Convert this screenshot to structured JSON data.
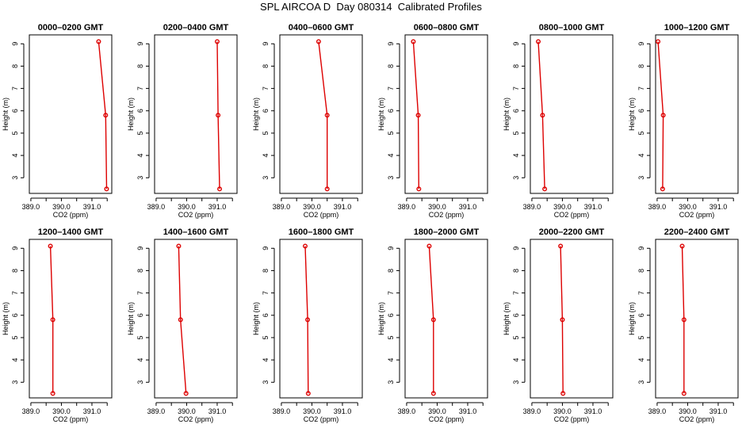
{
  "title": "SPL AIRCOA D  Day 080314  Calibrated Profiles",
  "colors": {
    "profile": "#dd0000",
    "axis": "#000000",
    "frame": "#000000"
  },
  "chart_data": [
    {
      "type": "line",
      "title": "0000–0200 GMT",
      "xlabel": "CO2 (ppm)",
      "ylabel": "Height (m)",
      "xlim": [
        388.95,
        391.65
      ],
      "ylim": [
        2.3,
        9.4
      ],
      "x_ticks": [
        389.0,
        389.5,
        390.0,
        390.5,
        391.0,
        391.5
      ],
      "x_tick_labels": [
        "389.0",
        "",
        "390.0",
        "",
        "391.0",
        ""
      ],
      "y_ticks": [
        3,
        4,
        5,
        6,
        7,
        8,
        9
      ],
      "y_tick_labels": [
        "3",
        "4",
        "5",
        "6",
        "7",
        "8",
        "9"
      ],
      "series": [
        {
          "x": [
            391.22,
            391.45,
            391.48
          ],
          "y": [
            9.1,
            5.8,
            2.5
          ]
        }
      ]
    },
    {
      "type": "line",
      "title": "0200–0400 GMT",
      "xlabel": "CO2 (ppm)",
      "ylabel": "Height (m)",
      "xlim": [
        388.95,
        391.65
      ],
      "ylim": [
        2.3,
        9.4
      ],
      "x_ticks": [
        389.0,
        389.5,
        390.0,
        390.5,
        391.0,
        391.5
      ],
      "x_tick_labels": [
        "389.0",
        "",
        "390.0",
        "",
        "391.0",
        ""
      ],
      "y_ticks": [
        3,
        4,
        5,
        6,
        7,
        8,
        9
      ],
      "y_tick_labels": [
        "3",
        "4",
        "5",
        "6",
        "7",
        "8",
        "9"
      ],
      "series": [
        {
          "x": [
            391.0,
            391.03,
            391.08
          ],
          "y": [
            9.1,
            5.8,
            2.5
          ]
        }
      ]
    },
    {
      "type": "line",
      "title": "0400–0600 GMT",
      "xlabel": "CO2 (ppm)",
      "ylabel": "Height (m)",
      "xlim": [
        388.95,
        391.65
      ],
      "ylim": [
        2.3,
        9.4
      ],
      "x_ticks": [
        389.0,
        389.5,
        390.0,
        390.5,
        391.0,
        391.5
      ],
      "x_tick_labels": [
        "389.0",
        "",
        "390.0",
        "",
        "391.0",
        ""
      ],
      "y_ticks": [
        3,
        4,
        5,
        6,
        7,
        8,
        9
      ],
      "y_tick_labels": [
        "3",
        "4",
        "5",
        "6",
        "7",
        "8",
        "9"
      ],
      "series": [
        {
          "x": [
            390.22,
            390.5,
            390.5
          ],
          "y": [
            9.1,
            5.8,
            2.5
          ]
        }
      ]
    },
    {
      "type": "line",
      "title": "0600–0800 GMT",
      "xlabel": "CO2 (ppm)",
      "ylabel": "Height (m)",
      "xlim": [
        388.95,
        391.65
      ],
      "ylim": [
        2.3,
        9.4
      ],
      "x_ticks": [
        389.0,
        389.5,
        390.0,
        390.5,
        391.0,
        391.5
      ],
      "x_tick_labels": [
        "389.0",
        "",
        "390.0",
        "",
        "391.0",
        ""
      ],
      "y_ticks": [
        3,
        4,
        5,
        6,
        7,
        8,
        9
      ],
      "y_tick_labels": [
        "3",
        "4",
        "5",
        "6",
        "7",
        "8",
        "9"
      ],
      "series": [
        {
          "x": [
            389.22,
            389.38,
            389.4
          ],
          "y": [
            9.1,
            5.8,
            2.5
          ]
        }
      ]
    },
    {
      "type": "line",
      "title": "0800–1000 GMT",
      "xlabel": "CO2 (ppm)",
      "ylabel": "Height (m)",
      "xlim": [
        388.95,
        391.65
      ],
      "ylim": [
        2.3,
        9.4
      ],
      "x_ticks": [
        389.0,
        389.5,
        390.0,
        390.5,
        391.0,
        391.5
      ],
      "x_tick_labels": [
        "389.0",
        "",
        "390.0",
        "",
        "391.0",
        ""
      ],
      "y_ticks": [
        3,
        4,
        5,
        6,
        7,
        8,
        9
      ],
      "y_tick_labels": [
        "3",
        "4",
        "5",
        "6",
        "7",
        "8",
        "9"
      ],
      "series": [
        {
          "x": [
            389.21,
            389.35,
            389.42
          ],
          "y": [
            9.1,
            5.8,
            2.5
          ]
        }
      ]
    },
    {
      "type": "line",
      "title": "1000–1200 GMT",
      "xlabel": "CO2 (ppm)",
      "ylabel": "Height (m)",
      "xlim": [
        388.95,
        391.65
      ],
      "ylim": [
        2.3,
        9.4
      ],
      "x_ticks": [
        389.0,
        389.5,
        390.0,
        390.5,
        391.0,
        391.5
      ],
      "x_tick_labels": [
        "389.0",
        "",
        "390.0",
        "",
        "391.0",
        ""
      ],
      "y_ticks": [
        3,
        4,
        5,
        6,
        7,
        8,
        9
      ],
      "y_tick_labels": [
        "3",
        "4",
        "5",
        "6",
        "7",
        "8",
        "9"
      ],
      "series": [
        {
          "x": [
            389.03,
            389.2,
            389.18
          ],
          "y": [
            9.1,
            5.8,
            2.5
          ]
        }
      ]
    },
    {
      "type": "line",
      "title": "1200–1400 GMT",
      "xlabel": "CO2 (ppm)",
      "ylabel": "Height (m)",
      "xlim": [
        388.95,
        391.65
      ],
      "ylim": [
        2.3,
        9.4
      ],
      "x_ticks": [
        389.0,
        389.5,
        390.0,
        390.5,
        391.0,
        391.5
      ],
      "x_tick_labels": [
        "389.0",
        "",
        "390.0",
        "",
        "391.0",
        ""
      ],
      "y_ticks": [
        3,
        4,
        5,
        6,
        7,
        8,
        9
      ],
      "y_tick_labels": [
        "3",
        "4",
        "5",
        "6",
        "7",
        "8",
        "9"
      ],
      "series": [
        {
          "x": [
            389.64,
            389.72,
            389.72
          ],
          "y": [
            9.1,
            5.8,
            2.5
          ]
        }
      ]
    },
    {
      "type": "line",
      "title": "1400–1600 GMT",
      "xlabel": "CO2 (ppm)",
      "ylabel": "Height (m)",
      "xlim": [
        388.95,
        391.65
      ],
      "ylim": [
        2.3,
        9.4
      ],
      "x_ticks": [
        389.0,
        389.5,
        390.0,
        390.5,
        391.0,
        391.5
      ],
      "x_tick_labels": [
        "389.0",
        "",
        "390.0",
        "",
        "391.0",
        ""
      ],
      "y_ticks": [
        3,
        4,
        5,
        6,
        7,
        8,
        9
      ],
      "y_tick_labels": [
        "3",
        "4",
        "5",
        "6",
        "7",
        "8",
        "9"
      ],
      "series": [
        {
          "x": [
            389.74,
            389.8,
            389.98
          ],
          "y": [
            9.1,
            5.8,
            2.5
          ]
        }
      ]
    },
    {
      "type": "line",
      "title": "1600–1800 GMT",
      "xlabel": "CO2 (ppm)",
      "ylabel": "Height (m)",
      "xlim": [
        388.95,
        391.65
      ],
      "ylim": [
        2.3,
        9.4
      ],
      "x_ticks": [
        389.0,
        389.5,
        390.0,
        390.5,
        391.0,
        391.5
      ],
      "x_tick_labels": [
        "389.0",
        "",
        "390.0",
        "",
        "391.0",
        ""
      ],
      "y_ticks": [
        3,
        4,
        5,
        6,
        7,
        8,
        9
      ],
      "y_tick_labels": [
        "3",
        "4",
        "5",
        "6",
        "7",
        "8",
        "9"
      ],
      "series": [
        {
          "x": [
            389.78,
            389.86,
            389.88
          ],
          "y": [
            9.1,
            5.8,
            2.5
          ]
        }
      ]
    },
    {
      "type": "line",
      "title": "1800–2000 GMT",
      "xlabel": "CO2 (ppm)",
      "ylabel": "Height (m)",
      "xlim": [
        388.95,
        391.65
      ],
      "ylim": [
        2.3,
        9.4
      ],
      "x_ticks": [
        389.0,
        389.5,
        390.0,
        390.5,
        391.0,
        391.5
      ],
      "x_tick_labels": [
        "389.0",
        "",
        "390.0",
        "",
        "391.0",
        ""
      ],
      "y_ticks": [
        3,
        4,
        5,
        6,
        7,
        8,
        9
      ],
      "y_tick_labels": [
        "3",
        "4",
        "5",
        "6",
        "7",
        "8",
        "9"
      ],
      "series": [
        {
          "x": [
            389.74,
            389.88,
            389.88
          ],
          "y": [
            9.1,
            5.8,
            2.5
          ]
        }
      ]
    },
    {
      "type": "line",
      "title": "2000–2200 GMT",
      "xlabel": "CO2 (ppm)",
      "ylabel": "Height (m)",
      "xlim": [
        388.95,
        391.65
      ],
      "ylim": [
        2.3,
        9.4
      ],
      "x_ticks": [
        389.0,
        389.5,
        390.0,
        390.5,
        391.0,
        391.5
      ],
      "x_tick_labels": [
        "389.0",
        "",
        "390.0",
        "",
        "391.0",
        ""
      ],
      "y_ticks": [
        3,
        4,
        5,
        6,
        7,
        8,
        9
      ],
      "y_tick_labels": [
        "3",
        "4",
        "5",
        "6",
        "7",
        "8",
        "9"
      ],
      "series": [
        {
          "x": [
            389.94,
            390.0,
            390.02
          ],
          "y": [
            9.1,
            5.8,
            2.5
          ]
        }
      ]
    },
    {
      "type": "line",
      "title": "2200–2400 GMT",
      "xlabel": "CO2 (ppm)",
      "ylabel": "Height (m)",
      "xlim": [
        388.95,
        391.65
      ],
      "ylim": [
        2.3,
        9.4
      ],
      "x_ticks": [
        389.0,
        389.5,
        390.0,
        390.5,
        391.0,
        391.5
      ],
      "x_tick_labels": [
        "389.0",
        "",
        "390.0",
        "",
        "391.0",
        ""
      ],
      "y_ticks": [
        3,
        4,
        5,
        6,
        7,
        8,
        9
      ],
      "y_tick_labels": [
        "3",
        "4",
        "5",
        "6",
        "7",
        "8",
        "9"
      ],
      "series": [
        {
          "x": [
            389.82,
            389.88,
            389.88
          ],
          "y": [
            9.1,
            5.8,
            2.5
          ]
        }
      ]
    }
  ]
}
